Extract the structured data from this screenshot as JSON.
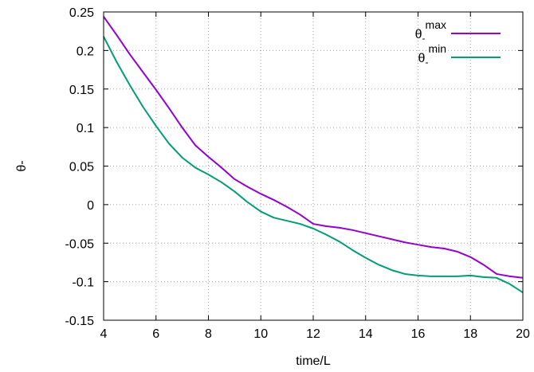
{
  "chart_data": {
    "type": "line",
    "title": "",
    "xlabel": "time/L",
    "ylabel": "θ-",
    "xlim": [
      4,
      20
    ],
    "ylim": [
      -0.15,
      0.25
    ],
    "xticks": [
      4,
      6,
      8,
      10,
      12,
      14,
      16,
      18,
      20
    ],
    "xtick_labels": [
      "4",
      "6",
      "8",
      "10",
      "12",
      "14",
      "16",
      "18",
      "20"
    ],
    "yticks": [
      -0.15,
      -0.1,
      -0.05,
      0,
      0.05,
      0.1,
      0.15,
      0.2,
      0.25
    ],
    "ytick_labels": [
      "-0.15",
      "-0.1",
      "-0.05",
      "0",
      "0.05",
      "0.1",
      "0.15",
      "0.2",
      "0.25"
    ],
    "grid": true,
    "legend_position": "top-right",
    "series": [
      {
        "name": "θ-max",
        "legend_base": "θ",
        "legend_sub": "-",
        "legend_sup": "max",
        "color": "#9400d3",
        "x": [
          4,
          4.5,
          5,
          5.5,
          6,
          6.5,
          7,
          7.5,
          8,
          8.5,
          9,
          9.5,
          10,
          10.5,
          11,
          11.5,
          12,
          12.5,
          13,
          13.5,
          14,
          14.5,
          15,
          15.5,
          16,
          16.5,
          17,
          17.5,
          18,
          18.5,
          19,
          19.5,
          20
        ],
        "y": [
          0.244,
          0.22,
          0.195,
          0.172,
          0.149,
          0.125,
          0.1,
          0.077,
          0.062,
          0.048,
          0.033,
          0.023,
          0.014,
          0.006,
          -0.003,
          -0.013,
          -0.025,
          -0.028,
          -0.03,
          -0.033,
          -0.037,
          -0.041,
          -0.045,
          -0.049,
          -0.052,
          -0.055,
          -0.057,
          -0.061,
          -0.068,
          -0.078,
          -0.09,
          -0.093,
          -0.095
        ]
      },
      {
        "name": "θ-min",
        "legend_base": "θ",
        "legend_sub": "-",
        "legend_sup": "min",
        "color": "#009e73",
        "x": [
          4,
          4.5,
          5,
          5.5,
          6,
          6.5,
          7,
          7.5,
          8,
          8.5,
          9,
          9.5,
          10,
          10.5,
          11,
          11.5,
          12,
          12.5,
          13,
          13.5,
          14,
          14.5,
          15,
          15.5,
          16,
          16.5,
          17,
          17.5,
          18,
          18.5,
          19,
          19.5,
          20
        ],
        "y": [
          0.218,
          0.185,
          0.155,
          0.127,
          0.102,
          0.079,
          0.061,
          0.048,
          0.039,
          0.029,
          0.017,
          0.003,
          -0.009,
          -0.017,
          -0.021,
          -0.025,
          -0.031,
          -0.039,
          -0.048,
          -0.059,
          -0.069,
          -0.078,
          -0.085,
          -0.09,
          -0.092,
          -0.093,
          -0.093,
          -0.093,
          -0.092,
          -0.094,
          -0.095,
          -0.103,
          -0.114
        ]
      }
    ]
  }
}
